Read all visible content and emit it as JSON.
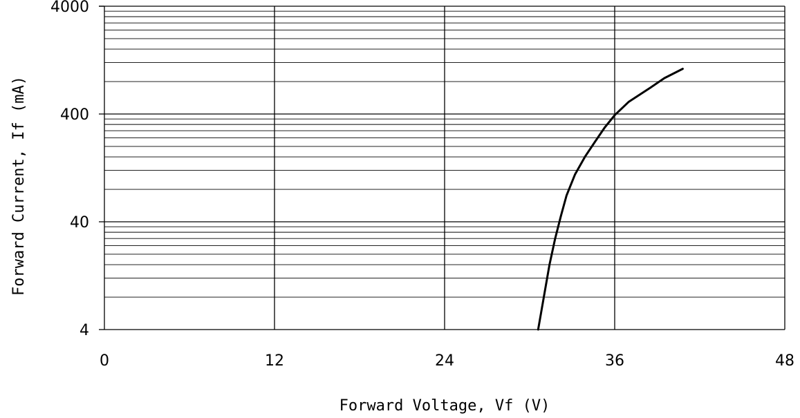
{
  "chart_data": {
    "type": "line",
    "title": "",
    "xlabel": "Forward Voltage, Vf (V)",
    "ylabel": "Forward Current, If (mA)",
    "xlim": [
      0,
      48
    ],
    "ylim": [
      4,
      4000
    ],
    "yscale": "log",
    "grid": true,
    "x_ticks": [
      0,
      12,
      24,
      36,
      48
    ],
    "x_tick_labels": [
      "0",
      "12",
      "24",
      "36",
      "48"
    ],
    "y_ticks": [
      4,
      40,
      400,
      4000
    ],
    "y_tick_labels": [
      "4",
      "40",
      "400",
      "4000"
    ],
    "series": [
      {
        "color": "#000000",
        "x": [
          30.6,
          31.0,
          31.4,
          31.8,
          32.2,
          32.6,
          33.2,
          33.9,
          34.6,
          35.3,
          36.0,
          37.0,
          38.5,
          39.5,
          40.8
        ],
        "y": [
          4,
          8,
          16,
          28,
          45,
          70,
          110,
          160,
          220,
          300,
          390,
          520,
          700,
          860,
          1050
        ]
      }
    ]
  }
}
